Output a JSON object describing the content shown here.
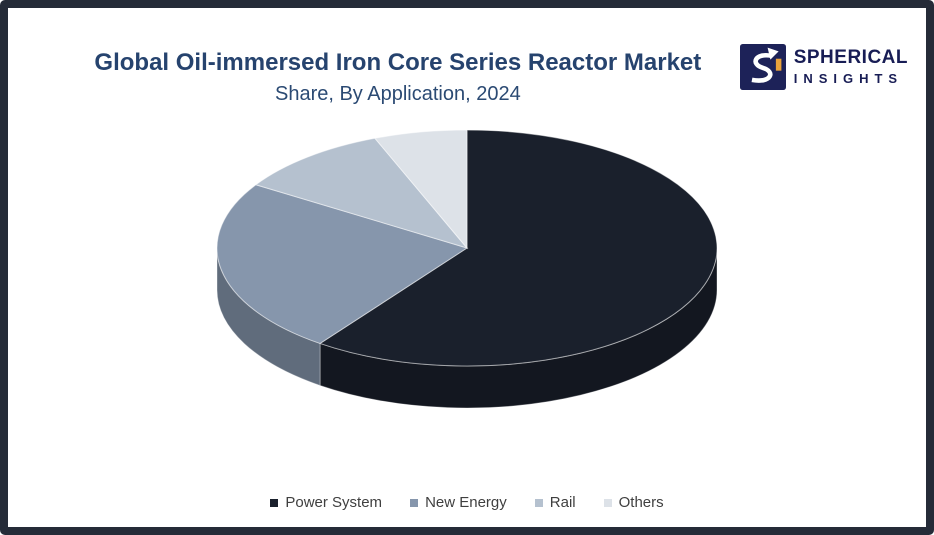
{
  "frame": {
    "border_color": "#252b38",
    "background": "#ffffff"
  },
  "header": {
    "title": "Global Oil-immersed Iron Core Series Reactor Market",
    "subtitle": "Share, By Application, 2024"
  },
  "logo": {
    "line1": "SPHERICAL",
    "line2": "INSIGHTS",
    "mark_background": "#1d2258",
    "mark_swoosh": "#ffffff",
    "mark_accent": "#e9a23b"
  },
  "chart_data": {
    "type": "pie",
    "style": "3d",
    "title": "Global Oil-immersed Iron Core Series Reactor Market",
    "subtitle": "Share, By Application, 2024",
    "categories": [
      "Power System",
      "New Energy",
      "Rail",
      "Others"
    ],
    "values": [
      60,
      24,
      10,
      6
    ],
    "unit": "percent_share_estimated",
    "colors": [
      "#1a202c",
      "#8696ac",
      "#b5c1cf",
      "#dde2e8"
    ],
    "start_angle": "top",
    "direction": "clockwise",
    "legend_position": "bottom",
    "data_labels": false
  },
  "legend": {
    "items": [
      {
        "label": "Power System",
        "color": "#1a202c"
      },
      {
        "label": "New Energy",
        "color": "#8696ac"
      },
      {
        "label": "Rail",
        "color": "#b5c1cf"
      },
      {
        "label": "Others",
        "color": "#dde2e8"
      }
    ]
  }
}
